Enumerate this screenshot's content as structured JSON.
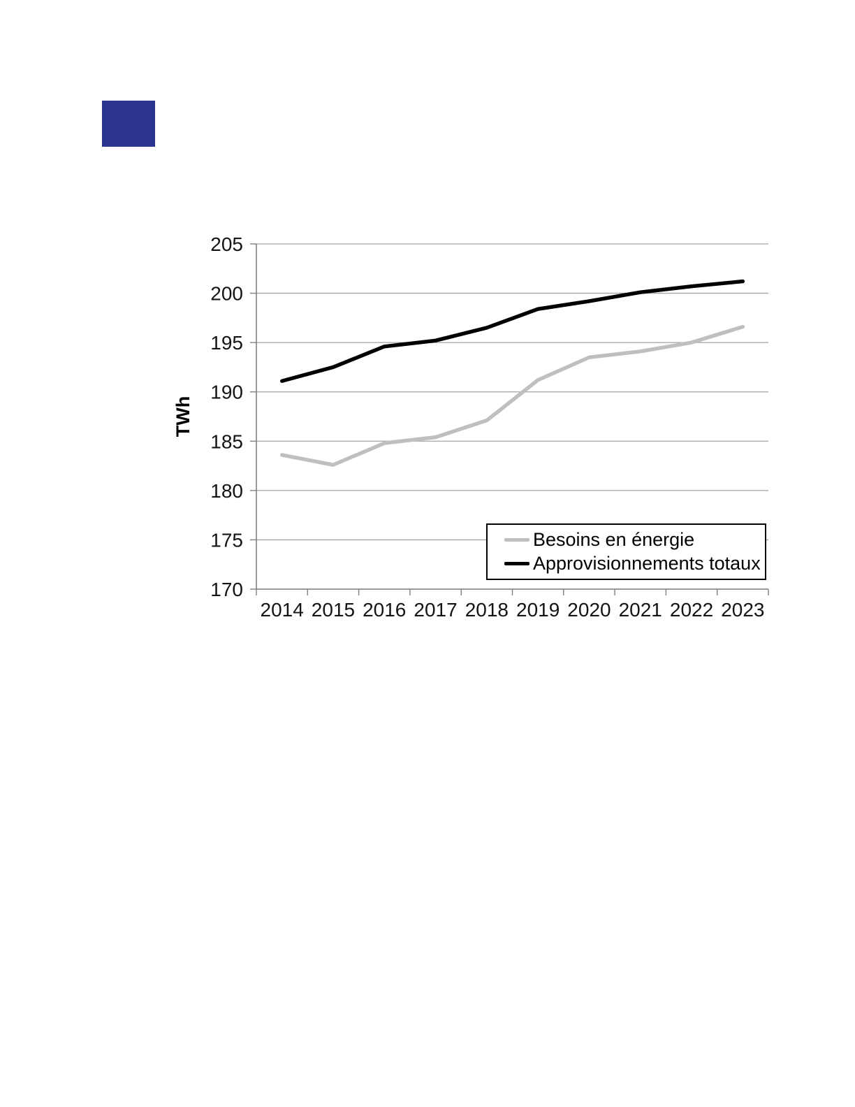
{
  "page": {
    "background_color": "#ffffff"
  },
  "decor": {
    "blue_square_color": "#2c3492"
  },
  "chart_data": {
    "type": "line",
    "title": "",
    "xlabel": "",
    "ylabel": "TWh",
    "categories": [
      "2014",
      "2015",
      "2016",
      "2017",
      "2018",
      "2019",
      "2020",
      "2021",
      "2022",
      "2023"
    ],
    "series": [
      {
        "name": "Besoins en énergie",
        "color": "#bfbfbf",
        "values": [
          183.6,
          182.6,
          184.8,
          185.4,
          187.1,
          191.2,
          193.5,
          194.1,
          195.0,
          196.6
        ]
      },
      {
        "name": "Approvisionnements totaux",
        "color": "#000000",
        "values": [
          191.1,
          192.5,
          194.6,
          195.2,
          196.5,
          198.4,
          199.2,
          200.1,
          200.7,
          201.2
        ]
      }
    ],
    "ylim": [
      170,
      205
    ],
    "ytick_step": 5,
    "yticks": [
      "170",
      "175",
      "180",
      "185",
      "190",
      "195",
      "200",
      "205"
    ],
    "grid": true,
    "gridline_color": "#a3a3a3",
    "axis_color": "#808080",
    "tick_label_color": "#141414",
    "legend_position": "inside-bottom-right"
  }
}
